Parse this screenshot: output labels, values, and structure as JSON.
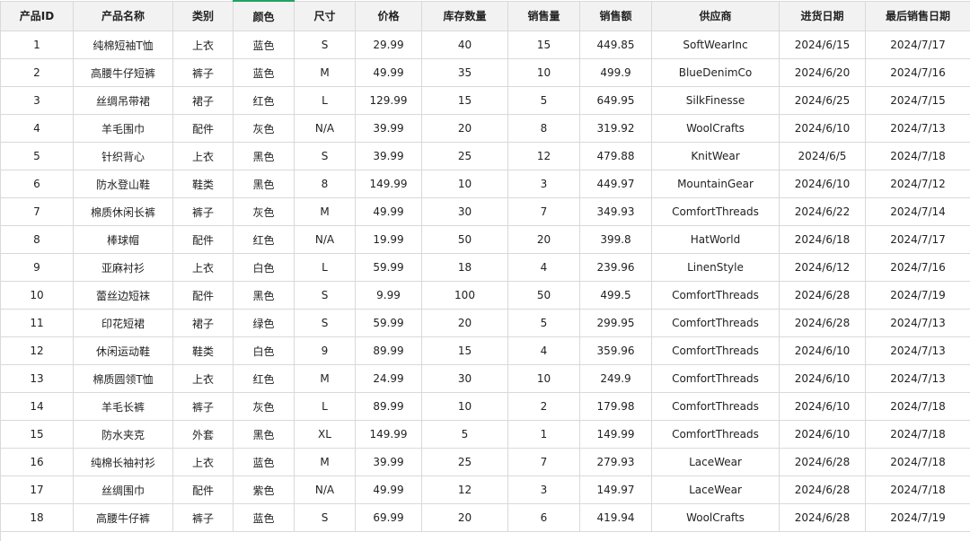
{
  "table": {
    "columns": [
      "产品ID",
      "产品名称",
      "类别",
      "颜色",
      "尺寸",
      "价格",
      "库存数量",
      "销售量",
      "销售额",
      "供应商",
      "进货日期",
      "最后销售日期"
    ],
    "rows": [
      [
        "1",
        "纯棉短袖T恤",
        "上衣",
        "蓝色",
        "S",
        "29.99",
        "40",
        "15",
        "449.85",
        "SoftWearInc",
        "2024/6/15",
        "2024/7/17"
      ],
      [
        "2",
        "高腰牛仔短裤",
        "裤子",
        "蓝色",
        "M",
        "49.99",
        "35",
        "10",
        "499.9",
        "BlueDenimCo",
        "2024/6/20",
        "2024/7/16"
      ],
      [
        "3",
        "丝绸吊带裙",
        "裙子",
        "红色",
        "L",
        "129.99",
        "15",
        "5",
        "649.95",
        "SilkFinesse",
        "2024/6/25",
        "2024/7/15"
      ],
      [
        "4",
        "羊毛围巾",
        "配件",
        "灰色",
        "N/A",
        "39.99",
        "20",
        "8",
        "319.92",
        "WoolCrafts",
        "2024/6/10",
        "2024/7/13"
      ],
      [
        "5",
        "针织背心",
        "上衣",
        "黑色",
        "S",
        "39.99",
        "25",
        "12",
        "479.88",
        "KnitWear",
        "2024/6/5",
        "2024/7/18"
      ],
      [
        "6",
        "防水登山鞋",
        "鞋类",
        "黑色",
        "8",
        "149.99",
        "10",
        "3",
        "449.97",
        "MountainGear",
        "2024/6/10",
        "2024/7/12"
      ],
      [
        "7",
        "棉质休闲长裤",
        "裤子",
        "灰色",
        "M",
        "49.99",
        "30",
        "7",
        "349.93",
        "ComfortThreads",
        "2024/6/22",
        "2024/7/14"
      ],
      [
        "8",
        "棒球帽",
        "配件",
        "红色",
        "N/A",
        "19.99",
        "50",
        "20",
        "399.8",
        "HatWorld",
        "2024/6/18",
        "2024/7/17"
      ],
      [
        "9",
        "亚麻衬衫",
        "上衣",
        "白色",
        "L",
        "59.99",
        "18",
        "4",
        "239.96",
        "LinenStyle",
        "2024/6/12",
        "2024/7/16"
      ],
      [
        "10",
        "蕾丝边短袜",
        "配件",
        "黑色",
        "S",
        "9.99",
        "100",
        "50",
        "499.5",
        "ComfortThreads",
        "2024/6/28",
        "2024/7/19"
      ],
      [
        "11",
        "印花短裙",
        "裙子",
        "绿色",
        "S",
        "59.99",
        "20",
        "5",
        "299.95",
        "ComfortThreads",
        "2024/6/28",
        "2024/7/13"
      ],
      [
        "12",
        "休闲运动鞋",
        "鞋类",
        "白色",
        "9",
        "89.99",
        "15",
        "4",
        "359.96",
        "ComfortThreads",
        "2024/6/10",
        "2024/7/13"
      ],
      [
        "13",
        "棉质圆领T恤",
        "上衣",
        "红色",
        "M",
        "24.99",
        "30",
        "10",
        "249.9",
        "ComfortThreads",
        "2024/6/10",
        "2024/7/13"
      ],
      [
        "14",
        "羊毛长裤",
        "裤子",
        "灰色",
        "L",
        "89.99",
        "10",
        "2",
        "179.98",
        "ComfortThreads",
        "2024/6/10",
        "2024/7/18"
      ],
      [
        "15",
        "防水夹克",
        "外套",
        "黑色",
        "XL",
        "149.99",
        "5",
        "1",
        "149.99",
        "ComfortThreads",
        "2024/6/10",
        "2024/7/18"
      ],
      [
        "16",
        "纯棉长袖衬衫",
        "上衣",
        "蓝色",
        "M",
        "39.99",
        "25",
        "7",
        "279.93",
        "LaceWear",
        "2024/6/28",
        "2024/7/18"
      ],
      [
        "17",
        "丝绸围巾",
        "配件",
        "紫色",
        "N/A",
        "49.99",
        "12",
        "3",
        "149.97",
        "LaceWear",
        "2024/6/28",
        "2024/7/18"
      ],
      [
        "18",
        "高腰牛仔裤",
        "裤子",
        "蓝色",
        "S",
        "69.99",
        "20",
        "6",
        "419.94",
        "WoolCrafts",
        "2024/6/28",
        "2024/7/19"
      ]
    ]
  }
}
